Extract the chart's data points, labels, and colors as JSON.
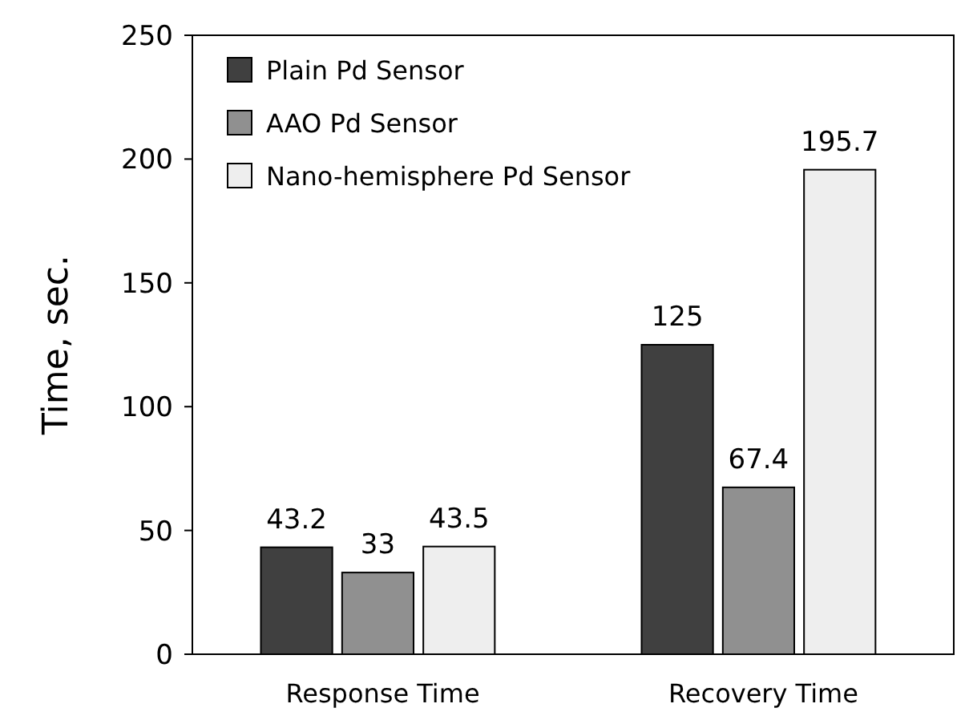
{
  "chart_data": {
    "type": "bar",
    "ylabel": "Time, sec.",
    "categories": [
      "Response Time",
      "Recovery Time"
    ],
    "series": [
      {
        "name": "Plain Pd Sensor",
        "color": "#404040",
        "values": [
          43.2,
          125
        ]
      },
      {
        "name": "AAO Pd Sensor",
        "color": "#909090",
        "values": [
          33,
          67.4
        ]
      },
      {
        "name": "Nano-hemisphere Pd Sensor",
        "color": "#eeeeee",
        "values": [
          43.5,
          195.7
        ]
      }
    ],
    "ylim": [
      0,
      250
    ],
    "yticks": [
      0,
      50,
      100,
      150,
      200,
      250
    ],
    "data_labels": true,
    "legend": "top left",
    "grid": false
  }
}
